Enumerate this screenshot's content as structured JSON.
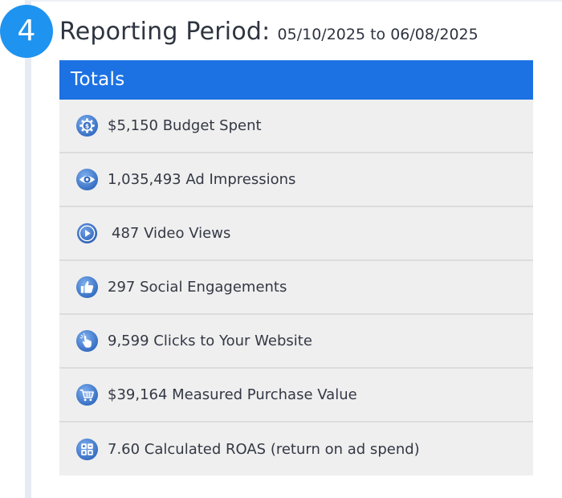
{
  "step": {
    "number": "4"
  },
  "header": {
    "title": "Reporting Period:",
    "dates": "05/10/2025 to 06/08/2025"
  },
  "totals": {
    "heading": "Totals",
    "items": [
      {
        "text": "$5,150 Budget Spent",
        "icon": "budget-gear-icon"
      },
      {
        "text": "1,035,493 Ad Impressions",
        "icon": "eye-icon"
      },
      {
        "text": "487 Video Views",
        "icon": "play-icon"
      },
      {
        "text": "297 Social Engagements",
        "icon": "thumbs-up-icon"
      },
      {
        "text": "9,599 Clicks to Your Website",
        "icon": "pointer-click-icon"
      },
      {
        "text": "$39,164 Measured Purchase Value",
        "icon": "shopping-cart-icon"
      },
      {
        "text": "7.60 Calculated ROAS (return on ad spend)",
        "icon": "calculator-icon"
      }
    ]
  },
  "colors": {
    "badge": "#1e93f0",
    "panel_header": "#1c72e3",
    "row_background": "#efefef",
    "icon": "#3a78c9"
  }
}
